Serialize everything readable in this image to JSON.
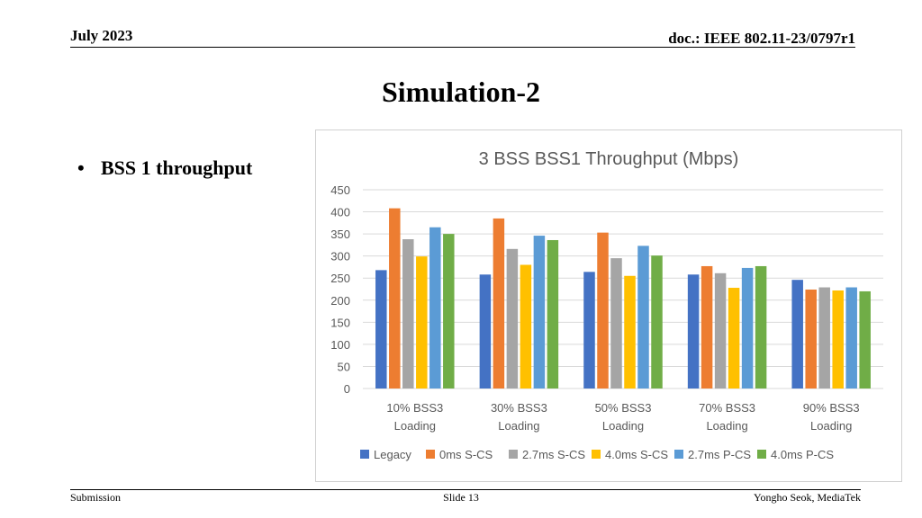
{
  "header": {
    "date": "July 2023",
    "doc": "doc.: IEEE 802.11-23/0797r1"
  },
  "slide_title": "Simulation-2",
  "bullets": [
    "BSS 1 throughput"
  ],
  "footer": {
    "left": "Submission",
    "center": "Slide 13",
    "right": "Yongho Seok, MediaTek"
  },
  "chart_data": {
    "type": "bar",
    "title": "3 BSS BSS1 Throughput (Mbps)",
    "categories": [
      [
        "10% BSS3",
        "Loading"
      ],
      [
        "30% BSS3",
        "Loading"
      ],
      [
        "50% BSS3",
        "Loading"
      ],
      [
        "70% BSS3",
        "Loading"
      ],
      [
        "90% BSS3",
        "Loading"
      ]
    ],
    "ylim": [
      0,
      450
    ],
    "yticks": [
      0,
      50,
      100,
      150,
      200,
      250,
      300,
      350,
      400,
      450
    ],
    "grid": true,
    "legend_position": "bottom",
    "series": [
      {
        "name": "Legacy",
        "color": "#4472C4",
        "values": [
          268,
          258,
          264,
          258,
          246
        ]
      },
      {
        "name": "0ms S-CS",
        "color": "#ED7D31",
        "values": [
          408,
          385,
          353,
          277,
          224
        ]
      },
      {
        "name": "2.7ms S-CS",
        "color": "#A5A5A5",
        "values": [
          338,
          316,
          295,
          261,
          229
        ]
      },
      {
        "name": "4.0ms S-CS",
        "color": "#FFC000",
        "values": [
          299,
          280,
          255,
          228,
          222
        ]
      },
      {
        "name": "2.7ms P-CS",
        "color": "#5B9BD5",
        "values": [
          365,
          346,
          323,
          273,
          229
        ]
      },
      {
        "name": "4.0ms P-CS",
        "color": "#70AD47",
        "values": [
          350,
          336,
          301,
          277,
          220
        ]
      }
    ]
  }
}
